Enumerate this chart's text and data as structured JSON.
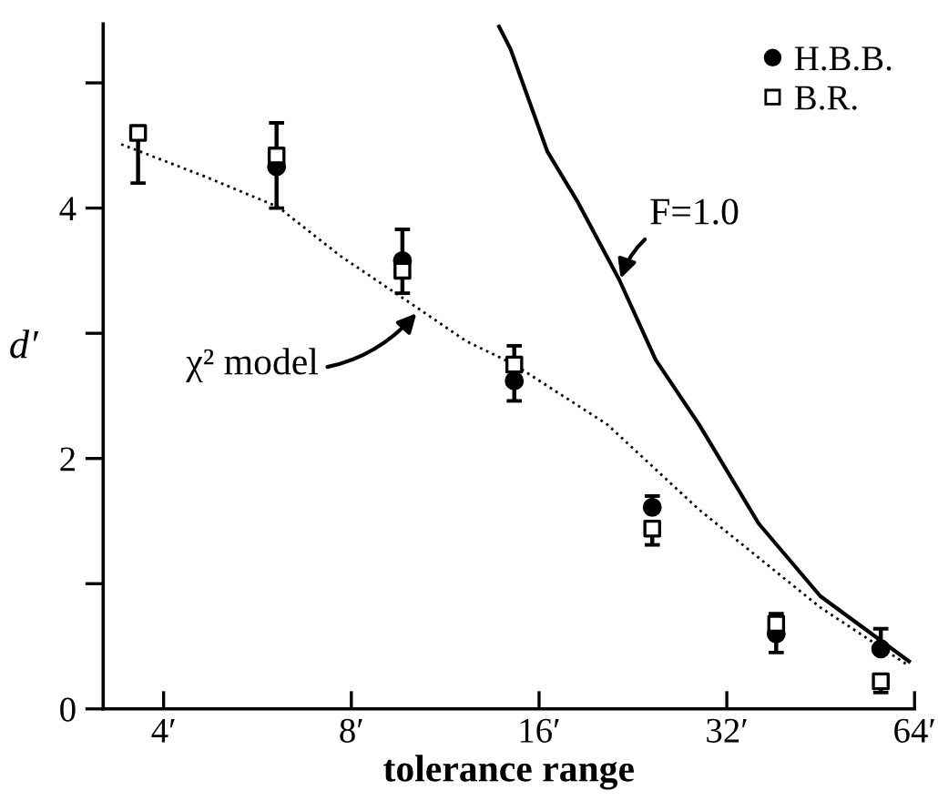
{
  "chart_data": {
    "type": "scatter",
    "xlabel": "tolerance range",
    "ylabel": "d′",
    "log": "x",
    "xlim": [
      3.2,
      64
    ],
    "ylim": [
      0,
      5.47
    ],
    "xticks": [
      {
        "value": 4,
        "label": "4′"
      },
      {
        "value": 8,
        "label": "8′"
      },
      {
        "value": 16,
        "label": "16′"
      },
      {
        "value": 32,
        "label": "32′"
      },
      {
        "value": 64,
        "label": "64′"
      }
    ],
    "yticks": [
      0,
      {
        "value": 1,
        "label": null
      },
      2,
      {
        "value": 3,
        "label": null
      },
      4,
      {
        "value": 5,
        "label": null
      }
    ],
    "grid": false,
    "legend": "top right",
    "series": [
      {
        "name": "H.B.B.",
        "marker": "circle",
        "color": "#000000",
        "x": [
          6.07,
          9.66,
          14.6,
          24.3,
          38.4,
          56.5
        ],
        "values": [
          4.33,
          3.58,
          2.62,
          1.61,
          0.6,
          0.48
        ],
        "errors": [
          [
            4.0,
            4.68
          ],
          [
            3.32,
            3.83
          ],
          [
            2.46,
            2.9
          ],
          [
            1.61,
            1.7
          ],
          [
            0.45,
            0.76
          ],
          [
            0.48,
            0.64
          ]
        ]
      },
      {
        "name": "B.R.",
        "marker": "square",
        "color": "#000000",
        "x": [
          3.64,
          6.07,
          9.66,
          14.6,
          24.3,
          38.4,
          56.5
        ],
        "values": [
          4.6,
          4.42,
          3.5,
          2.75,
          1.44,
          0.68,
          0.22
        ],
        "errors": [
          [
            4.2,
            4.6
          ],
          null,
          null,
          null,
          [
            1.31,
            1.44
          ],
          null,
          [
            0.13,
            0.22
          ]
        ]
      },
      {
        "type": "line",
        "marker": "none",
        "line_style": "dotted",
        "color": "#000000",
        "x": [
          3.42,
          4.67,
          6.1,
          7.67,
          10.3,
          12.2,
          14.6,
          20.6,
          28.9,
          45.2,
          62.4
        ],
        "values": [
          4.51,
          4.25,
          4.01,
          3.62,
          3.19,
          2.94,
          2.75,
          2.27,
          1.59,
          0.81,
          0.35
        ]
      },
      {
        "type": "line",
        "marker": "none",
        "line_style": "solid",
        "color": "#000000",
        "x": [
          13.8,
          14.4,
          16.5,
          18.4,
          21.5,
          24.6,
          28.9,
          36.0,
          45.2,
          62.7
        ],
        "values": [
          5.45,
          5.27,
          4.45,
          4.06,
          3.43,
          2.79,
          2.27,
          1.48,
          0.9,
          0.38
        ]
      }
    ],
    "annotations": [
      {
        "text": "χ² model",
        "x": 10.3,
        "y": 3.19
      },
      {
        "text": "F=1.0",
        "x": 21.5,
        "y": 3.4
      }
    ]
  }
}
